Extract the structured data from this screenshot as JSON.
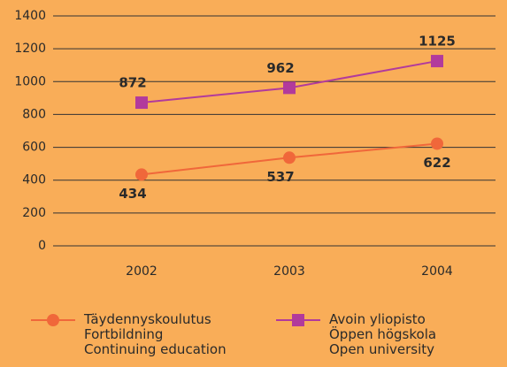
{
  "chart_data": {
    "type": "line",
    "categories": [
      "2002",
      "2003",
      "2004"
    ],
    "series": [
      {
        "name": "Täydennyskoulutus\nFortbildning\nContinuing education",
        "color": "#f0673a",
        "marker": "circle",
        "values": [
          434,
          537,
          622
        ]
      },
      {
        "name": "Avoin yliopisto\nÖppen högskola\nOpen university",
        "color": "#b23a9c",
        "marker": "square",
        "values": [
          872,
          962,
          1125
        ]
      }
    ],
    "ylim": [
      0,
      1400
    ],
    "yticks": [
      0,
      200,
      400,
      600,
      800,
      1000,
      1200,
      1400
    ],
    "grid": true
  }
}
